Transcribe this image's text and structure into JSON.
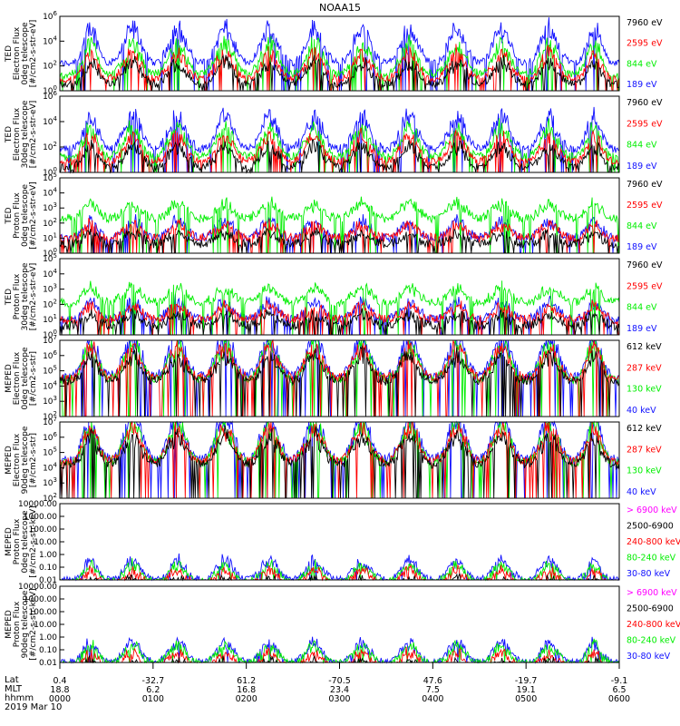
{
  "title": "NOAA15",
  "colors": {
    "black": "#000000",
    "blue": "#1010ff",
    "red": "#ff0000",
    "green": "#00ee00",
    "magenta": "#ff00ff"
  },
  "chart_data": [
    {
      "type": "line",
      "ylabel": [
        "TED",
        "Electron Flux",
        "0deg telescope",
        "[#/cm2-s-str-eV]"
      ],
      "ylog": true,
      "ylim": [
        1,
        1000000
      ],
      "ticks": [
        "10^0",
        "10^2",
        "10^4",
        "10^6"
      ],
      "legend": [
        {
          "label": "7960 eV",
          "color": "black"
        },
        {
          "label": "2595 eV",
          "color": "red"
        },
        {
          "label": "844 eV",
          "color": "green"
        },
        {
          "label": "189 eV",
          "color": "blue"
        }
      ],
      "base": {
        "blue": 2.2,
        "green": 1.3,
        "red": 0.9,
        "black": 0.5
      },
      "amp": 3.2
    },
    {
      "type": "line",
      "ylabel": [
        "TED",
        "Electron Flux",
        "30deg telescope",
        "[#/cm2-s-str-eV]"
      ],
      "ylog": true,
      "ylim": [
        1,
        1000000
      ],
      "ticks": [
        "10^0",
        "10^2",
        "10^4",
        "10^6"
      ],
      "legend": [
        {
          "label": "7960 eV",
          "color": "black"
        },
        {
          "label": "2595 eV",
          "color": "red"
        },
        {
          "label": "844 eV",
          "color": "green"
        },
        {
          "label": "189 eV",
          "color": "blue"
        }
      ],
      "base": {
        "blue": 1.8,
        "green": 1.2,
        "red": 0.8,
        "black": 0.4
      },
      "amp": 3.0
    },
    {
      "type": "line",
      "ylabel": [
        "TED",
        "Proton Flux",
        "0deg telescope",
        "[#/cm2-s-str-eV]"
      ],
      "ylog": true,
      "ylim": [
        1,
        100000
      ],
      "ticks": [
        "10^0",
        "10^1",
        "10^2",
        "10^3",
        "10^4",
        "10^5"
      ],
      "legend": [
        {
          "label": "7960 eV",
          "color": "black"
        },
        {
          "label": "2595 eV",
          "color": "red"
        },
        {
          "label": "844 eV",
          "color": "green"
        },
        {
          "label": "189 eV",
          "color": "blue"
        }
      ],
      "base": {
        "blue": 1.0,
        "green": 2.3,
        "red": 1.0,
        "black": 0.6
      },
      "amp": 1.3
    },
    {
      "type": "line",
      "ylabel": [
        "TED",
        "Proton Flux",
        "30deg telescope",
        "[#/cm2-s-str-eV]"
      ],
      "ylog": true,
      "ylim": [
        1,
        100000
      ],
      "ticks": [
        "10^0",
        "10^1",
        "10^2",
        "10^3",
        "10^4",
        "10^5"
      ],
      "legend": [
        {
          "label": "7960 eV",
          "color": "black"
        },
        {
          "label": "2595 eV",
          "color": "red"
        },
        {
          "label": "844 eV",
          "color": "green"
        },
        {
          "label": "189 eV",
          "color": "blue"
        }
      ],
      "base": {
        "blue": 1.0,
        "green": 2.1,
        "red": 1.0,
        "black": 0.6
      },
      "amp": 1.3
    },
    {
      "type": "line",
      "ylabel": [
        "MEPED",
        "Electron Flux",
        "0deg telescope",
        "[#/cm2-s-str]"
      ],
      "ylog": true,
      "ylim": [
        100,
        10000000
      ],
      "ticks": [
        "10^2",
        "10^3",
        "10^4",
        "10^5",
        "10^6",
        "10^7"
      ],
      "legend": [
        {
          "label": "612 keV",
          "color": "black"
        },
        {
          "label": "287 keV",
          "color": "red"
        },
        {
          "label": "130 keV",
          "color": "green"
        },
        {
          "label": "40 keV",
          "color": "blue"
        }
      ],
      "base": {
        "blue": 2.6,
        "green": 2.4,
        "red": 2.5,
        "black": 2.3
      },
      "amp": 3.0
    },
    {
      "type": "line",
      "ylabel": [
        "MEPED",
        "Electron Flux",
        "90deg telescope",
        "[#/cm2-s-str]"
      ],
      "ylog": true,
      "ylim": [
        100,
        10000000
      ],
      "ticks": [
        "10^2",
        "10^3",
        "10^4",
        "10^5",
        "10^6",
        "10^7"
      ],
      "legend": [
        {
          "label": "612 keV",
          "color": "black"
        },
        {
          "label": "287 keV",
          "color": "red"
        },
        {
          "label": "130 keV",
          "color": "green"
        },
        {
          "label": "40 keV",
          "color": "blue"
        }
      ],
      "base": {
        "blue": 2.5,
        "green": 2.3,
        "red": 2.4,
        "black": 2.2
      },
      "amp": 3.3
    },
    {
      "type": "line",
      "ylabel": [
        "MEPED",
        "Proton Flux",
        "0deg telescope",
        "[#/cm2-s-str-keV]"
      ],
      "ylog": true,
      "ylim": [
        0.01,
        100000
      ],
      "ticks": [
        "0.01",
        "0.10",
        "1.00",
        "10.00",
        "100.00",
        "1000.00",
        "10000.00"
      ],
      "legend": [
        {
          "label": "> 6900 keV",
          "color": "magenta"
        },
        {
          "label": "2500-6900",
          "color": "black"
        },
        {
          "label": "240-800 keV",
          "color": "red"
        },
        {
          "label": "80-240 keV",
          "color": "green"
        },
        {
          "label": "30-80 keV",
          "color": "blue"
        }
      ],
      "base": {
        "blue": 0.0,
        "green": -0.2,
        "red": -0.5,
        "black": -1.0
      },
      "amp": 2.0
    },
    {
      "type": "line",
      "ylabel": [
        "MEPED",
        "Proton Flux",
        "90deg telescope",
        "[#/cm2-s-str-keV]"
      ],
      "ylog": true,
      "ylim": [
        0.01,
        100000
      ],
      "ticks": [
        "0.01",
        "0.10",
        "1.00",
        "10.00",
        "100.00",
        "1000.00",
        "10000.00"
      ],
      "legend": [
        {
          "label": "> 6900 keV",
          "color": "magenta"
        },
        {
          "label": "2500-6900",
          "color": "black"
        },
        {
          "label": "240-800 keV",
          "color": "red"
        },
        {
          "label": "80-240 keV",
          "color": "green"
        },
        {
          "label": "30-80 keV",
          "color": "blue"
        }
      ],
      "base": {
        "blue": 0.0,
        "green": -0.1,
        "red": -0.5,
        "black": -1.0
      },
      "amp": 2.1
    }
  ],
  "xaxis": {
    "row_labels": [
      "Lat",
      "MLT",
      "hhmm"
    ],
    "date": "2019 Mar 10",
    "ticks": [
      {
        "lat": "0.4",
        "mlt": "18.8",
        "hhmm": "0000"
      },
      {
        "lat": "-32.7",
        "mlt": "6.2",
        "hhmm": "0100"
      },
      {
        "lat": "61.2",
        "mlt": "16.8",
        "hhmm": "0200"
      },
      {
        "lat": "-70.5",
        "mlt": "23.4",
        "hhmm": "0300"
      },
      {
        "lat": "47.6",
        "mlt": "7.5",
        "hhmm": "0400"
      },
      {
        "lat": "-19.7",
        "mlt": "19.1",
        "hhmm": "0500"
      },
      {
        "lat": "-9.1",
        "mlt": "6.5",
        "hhmm": "0600"
      }
    ],
    "xlim": [
      "0000",
      "0600"
    ]
  },
  "passes": [
    {
      "t": 0.055,
      "w": 0.025
    },
    {
      "t": 0.13,
      "w": 0.03
    },
    {
      "t": 0.21,
      "w": 0.03
    },
    {
      "t": 0.295,
      "w": 0.03
    },
    {
      "t": 0.375,
      "w": 0.03
    },
    {
      "t": 0.455,
      "w": 0.03
    },
    {
      "t": 0.54,
      "w": 0.03
    },
    {
      "t": 0.625,
      "w": 0.03
    },
    {
      "t": 0.71,
      "w": 0.03
    },
    {
      "t": 0.79,
      "w": 0.03
    },
    {
      "t": 0.875,
      "w": 0.03
    },
    {
      "t": 0.955,
      "w": 0.025
    }
  ]
}
